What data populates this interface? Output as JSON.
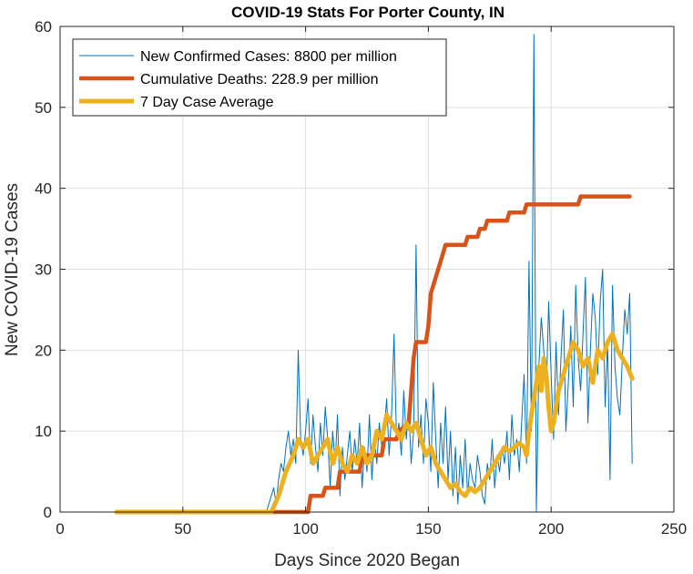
{
  "chart_data": {
    "type": "line",
    "title": "COVID-19 Stats For Porter County, IN",
    "xlabel": "Days Since 2020 Began",
    "ylabel": "New COVID-19 Cases",
    "xlim": [
      0,
      250
    ],
    "ylim": [
      0,
      60
    ],
    "xticks": [
      0,
      50,
      100,
      150,
      200,
      250
    ],
    "yticks": [
      0,
      10,
      20,
      30,
      40,
      50,
      60
    ],
    "grid": true,
    "legend_position": "top-left",
    "series": [
      {
        "name": "New Confirmed Cases: 8800 per million",
        "color": "#0072BD",
        "width": 1,
        "x": [
          23,
          83,
          84,
          85,
          86,
          87,
          88,
          89,
          90,
          91,
          92,
          93,
          94,
          95,
          96,
          97,
          98,
          99,
          100,
          101,
          102,
          103,
          104,
          105,
          106,
          107,
          108,
          109,
          110,
          111,
          112,
          113,
          114,
          115,
          116,
          117,
          118,
          119,
          120,
          121,
          122,
          123,
          124,
          125,
          126,
          127,
          128,
          129,
          130,
          131,
          132,
          133,
          134,
          135,
          136,
          137,
          138,
          139,
          140,
          141,
          142,
          143,
          144,
          145,
          146,
          147,
          148,
          149,
          150,
          151,
          152,
          153,
          154,
          155,
          156,
          157,
          158,
          159,
          160,
          161,
          162,
          163,
          164,
          165,
          166,
          167,
          168,
          169,
          170,
          171,
          172,
          173,
          174,
          175,
          176,
          177,
          178,
          179,
          180,
          181,
          182,
          183,
          184,
          185,
          186,
          187,
          188,
          189,
          190,
          191,
          192,
          193,
          194,
          195,
          196,
          197,
          198,
          199,
          200,
          201,
          202,
          203,
          204,
          205,
          206,
          207,
          208,
          209,
          210,
          211,
          212,
          213,
          214,
          215,
          216,
          217,
          218,
          219,
          220,
          221,
          222,
          223,
          224,
          225,
          226,
          227,
          228,
          229,
          230,
          231,
          232,
          233
        ],
        "y": [
          0,
          0,
          0,
          1,
          2,
          3,
          1,
          4,
          6,
          5,
          8,
          10,
          7,
          9,
          6,
          20,
          9,
          7,
          10,
          14,
          6,
          12,
          8,
          5,
          11,
          7,
          13,
          9,
          3,
          10,
          6,
          12,
          2,
          8,
          4,
          7,
          10,
          5,
          9,
          6,
          11,
          3,
          8,
          5,
          12,
          4,
          9,
          6,
          11,
          8,
          10,
          14,
          7,
          12,
          22,
          9,
          11,
          7,
          15,
          9,
          13,
          6,
          10,
          33,
          8,
          12,
          6,
          14,
          11,
          5,
          16,
          9,
          3,
          11,
          6,
          13,
          4,
          10,
          2,
          8,
          1,
          7,
          3,
          9,
          2,
          6,
          4,
          3,
          7,
          5,
          2,
          1,
          6,
          4,
          9,
          3,
          7,
          5,
          8,
          6,
          10,
          4,
          12,
          7,
          9,
          5,
          11,
          17,
          6,
          31,
          10,
          59,
          0,
          18,
          24,
          20,
          14,
          26,
          17,
          9,
          21,
          12,
          19,
          25,
          10,
          16,
          23,
          13,
          28,
          19,
          15,
          22,
          29,
          11,
          20,
          27,
          24,
          17,
          26,
          30,
          13,
          21,
          4,
          28,
          18,
          14,
          12,
          19,
          25,
          22,
          27,
          6
        ]
      },
      {
        "name": "Cumulative Deaths: 228.9 per million",
        "color": "#D95319",
        "width": 4.5,
        "x": [
          23,
          101,
          102,
          107,
          108,
          113,
          114,
          122,
          123,
          131,
          132,
          137,
          138,
          142,
          143,
          144,
          145,
          149,
          150,
          151,
          152,
          153,
          154,
          155,
          157,
          165,
          166,
          170,
          171,
          173,
          174,
          182,
          183,
          189,
          190,
          192,
          193,
          211,
          212,
          232
        ],
        "y": [
          0,
          0,
          2,
          2,
          3,
          3,
          5,
          5,
          7,
          7,
          9,
          9,
          10,
          11,
          15,
          19,
          21,
          21,
          23,
          27,
          28,
          29,
          30,
          31,
          33,
          33,
          34,
          34,
          35,
          35,
          36,
          36,
          37,
          37,
          38,
          38,
          38,
          38,
          39,
          39
        ]
      },
      {
        "name": "7 Day Case Average",
        "color": "#EDB120",
        "width": 5,
        "x": [
          23,
          86,
          89,
          92,
          95,
          97,
          99,
          101,
          103,
          105,
          107,
          109,
          111,
          113,
          115,
          117,
          119,
          121,
          123,
          125,
          127,
          129,
          131,
          133,
          135,
          137,
          139,
          141,
          143,
          145,
          147,
          149,
          151,
          153,
          155,
          157,
          159,
          161,
          163,
          165,
          167,
          169,
          171,
          173,
          175,
          177,
          179,
          181,
          183,
          185,
          187,
          189,
          190,
          191,
          192,
          193,
          194,
          195,
          196,
          197,
          198,
          199,
          200,
          201,
          202,
          203,
          205,
          207,
          209,
          211,
          213,
          215,
          217,
          219,
          221,
          223,
          225,
          227,
          229,
          231,
          233
        ],
        "y": [
          0,
          0,
          2,
          5,
          7,
          9,
          8,
          9,
          6,
          7,
          8,
          9,
          6,
          8,
          6,
          5,
          7,
          6,
          8,
          6,
          7,
          10,
          9,
          12,
          11,
          10,
          9,
          11,
          10,
          11,
          9,
          7,
          8,
          6,
          5,
          4,
          3,
          3.5,
          2.5,
          2,
          3,
          2.5,
          3,
          4,
          5,
          6,
          7,
          8,
          7.5,
          8,
          8.5,
          8,
          7,
          10,
          12,
          14,
          16,
          18,
          15,
          19,
          17,
          13,
          10,
          11,
          13,
          15,
          17,
          19,
          21,
          20,
          18,
          19,
          16,
          20,
          19,
          21,
          22,
          20,
          19,
          18,
          16.5
        ]
      }
    ]
  }
}
